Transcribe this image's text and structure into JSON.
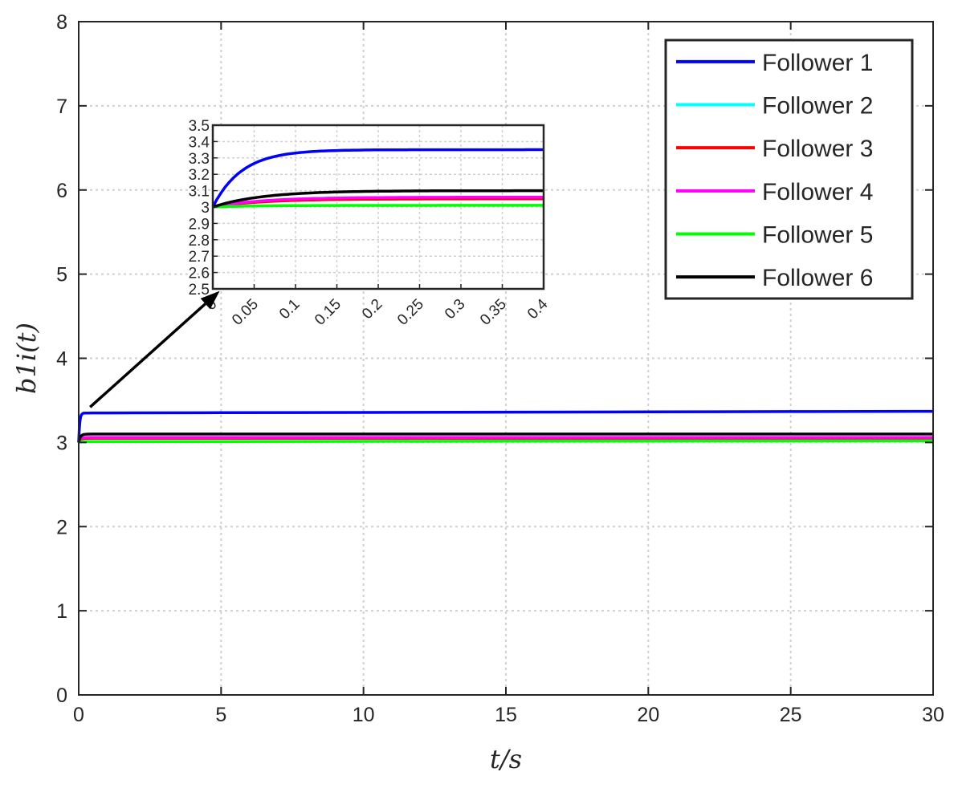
{
  "chart_data": {
    "type": "line",
    "xlabel": "t/s",
    "ylabel": "b1i(t)",
    "xlim": [
      0,
      30
    ],
    "ylim": [
      0,
      8
    ],
    "xticks": [
      0,
      5,
      10,
      15,
      20,
      25,
      30
    ],
    "yticks": [
      0,
      1,
      2,
      3,
      4,
      5,
      6,
      7,
      8
    ],
    "grid": true,
    "legend": {
      "placement": "top-right"
    },
    "series": [
      {
        "name": "Follower 1",
        "color": "#0000ff",
        "initial": 3.0,
        "final": 3.35,
        "final_at_30": 3.37,
        "tau": 0.035
      },
      {
        "name": "Follower 2",
        "color": "#00ffff",
        "initial": 3.0,
        "final": 3.05,
        "final_at_30": 3.05,
        "tau": 0.05
      },
      {
        "name": "Follower 3",
        "color": "#ff0000",
        "initial": 3.0,
        "final": 3.05,
        "final_at_30": 3.05,
        "tau": 0.06
      },
      {
        "name": "Follower 4",
        "color": "#ff00ff",
        "initial": 3.0,
        "final": 3.06,
        "final_at_30": 3.06,
        "tau": 0.06
      },
      {
        "name": "Follower 5",
        "color": "#00ff00",
        "initial": 3.0,
        "final": 3.01,
        "final_at_30": 3.02,
        "tau": 0.05
      },
      {
        "name": "Follower 6",
        "color": "#000000",
        "initial": 3.0,
        "final": 3.1,
        "final_at_30": 3.1,
        "tau": 0.06
      }
    ],
    "inset": {
      "xlim": [
        0,
        0.4
      ],
      "ylim": [
        2.5,
        3.5
      ],
      "xticks": [
        "0",
        "0.05",
        "0.1",
        "0.15",
        "0.2",
        "0.25",
        "0.3",
        "0.35",
        "0.4"
      ],
      "yticks": [
        "2.5",
        "2.6",
        "2.7",
        "2.8",
        "2.9",
        "3",
        "3.1",
        "3.2",
        "3.3",
        "3.4",
        "3.5"
      ],
      "grid": true,
      "arrow": {
        "from": [
          0.4,
          3.42
        ],
        "to": [
          4.95,
          4.8
        ]
      }
    }
  }
}
